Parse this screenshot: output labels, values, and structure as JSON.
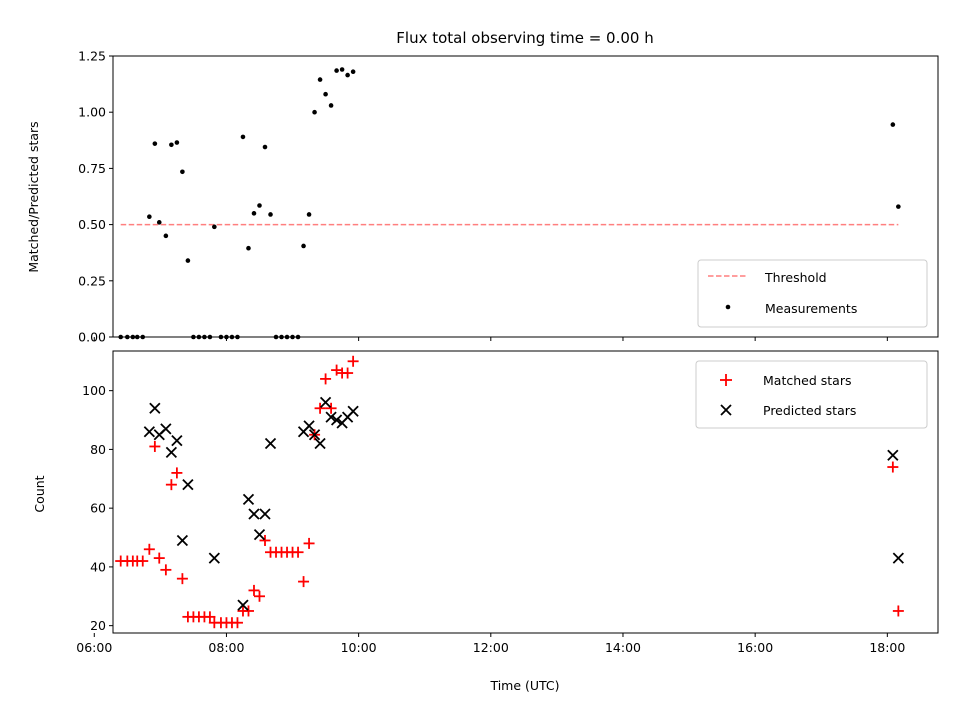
{
  "chart_data": [
    {
      "type": "scatter",
      "title": "Flux total observing time = 0.00 h",
      "xlabel": "",
      "ylabel": "Matched/Predicted stars",
      "xlim": [
        "06:17",
        "18:46"
      ],
      "ylim": [
        0.0,
        1.25
      ],
      "yticks": [
        0.0,
        0.25,
        0.5,
        0.75,
        1.0,
        1.25
      ],
      "ytick_labels": [
        "0.00",
        "0.25",
        "0.50",
        "0.75",
        "1.00",
        "1.25"
      ],
      "xticks": [
        "06:00",
        "08:00",
        "10:00",
        "12:00",
        "14:00",
        "16:00",
        "18:00"
      ],
      "grid": false,
      "legend": {
        "placement": "bottom-right",
        "entries": [
          "Threshold",
          "Measurements"
        ]
      },
      "series": [
        {
          "name": "Threshold",
          "style": "dashed-line",
          "color": "#ff7f7f",
          "points": [
            [
              "06:24",
              0.5
            ],
            [
              "18:10",
              0.5
            ]
          ]
        },
        {
          "name": "Measurements",
          "style": "dot",
          "color": "#000000",
          "points": [
            [
              "06:24",
              0.0
            ],
            [
              "06:30",
              0.0
            ],
            [
              "06:35",
              0.0
            ],
            [
              "06:39",
              0.0
            ],
            [
              "06:44",
              0.0
            ],
            [
              "06:50",
              0.535
            ],
            [
              "06:55",
              0.86
            ],
            [
              "06:59",
              0.51
            ],
            [
              "07:05",
              0.45
            ],
            [
              "07:10",
              0.855
            ],
            [
              "07:15",
              0.865
            ],
            [
              "07:20",
              0.735
            ],
            [
              "07:25",
              0.34
            ],
            [
              "07:30",
              0.0
            ],
            [
              "07:35",
              0.0
            ],
            [
              "07:40",
              0.0
            ],
            [
              "07:45",
              0.0
            ],
            [
              "07:49",
              0.49
            ],
            [
              "07:55",
              0.0
            ],
            [
              "08:00",
              0.0
            ],
            [
              "08:05",
              0.0
            ],
            [
              "08:10",
              0.0
            ],
            [
              "08:15",
              0.89
            ],
            [
              "08:20",
              0.395
            ],
            [
              "08:25",
              0.55
            ],
            [
              "08:30",
              0.585
            ],
            [
              "08:35",
              0.845
            ],
            [
              "08:40",
              0.545
            ],
            [
              "08:45",
              0.0
            ],
            [
              "08:50",
              0.0
            ],
            [
              "08:55",
              0.0
            ],
            [
              "09:00",
              0.0
            ],
            [
              "09:05",
              0.0
            ],
            [
              "09:10",
              0.405
            ],
            [
              "09:15",
              0.545
            ],
            [
              "09:20",
              1.0
            ],
            [
              "09:25",
              1.145
            ],
            [
              "09:30",
              1.08
            ],
            [
              "09:35",
              1.03
            ],
            [
              "09:40",
              1.185
            ],
            [
              "09:45",
              1.19
            ],
            [
              "09:50",
              1.165
            ],
            [
              "09:55",
              1.18
            ],
            [
              "18:05",
              0.945
            ],
            [
              "18:10",
              0.58
            ]
          ]
        }
      ]
    },
    {
      "type": "scatter",
      "title": "",
      "xlabel": "Time (UTC)",
      "ylabel": "Count",
      "xlim": [
        "06:17",
        "18:46"
      ],
      "ylim": [
        17.5,
        113.5
      ],
      "yticks": [
        20,
        40,
        60,
        80,
        100
      ],
      "ytick_labels": [
        "20",
        "40",
        "60",
        "80",
        "100"
      ],
      "xticks": [
        "06:00",
        "08:00",
        "10:00",
        "12:00",
        "14:00",
        "16:00",
        "18:00"
      ],
      "xtick_labels": [
        "06:00",
        "08:00",
        "10:00",
        "12:00",
        "14:00",
        "16:00",
        "18:00"
      ],
      "grid": false,
      "legend": {
        "placement": "top-right",
        "entries": [
          "Matched stars",
          "Predicted stars"
        ]
      },
      "series": [
        {
          "name": "Matched stars",
          "style": "plus",
          "color": "#ff0000",
          "points": [
            [
              "06:24",
              42
            ],
            [
              "06:30",
              42
            ],
            [
              "06:35",
              42
            ],
            [
              "06:39",
              42
            ],
            [
              "06:44",
              42
            ],
            [
              "06:50",
              46
            ],
            [
              "06:55",
              81
            ],
            [
              "06:59",
              43
            ],
            [
              "07:05",
              39
            ],
            [
              "07:10",
              68
            ],
            [
              "07:15",
              72
            ],
            [
              "07:20",
              36
            ],
            [
              "07:25",
              23
            ],
            [
              "07:30",
              23
            ],
            [
              "07:35",
              23
            ],
            [
              "07:40",
              23
            ],
            [
              "07:45",
              23
            ],
            [
              "07:49",
              21
            ],
            [
              "07:55",
              21
            ],
            [
              "08:00",
              21
            ],
            [
              "08:05",
              21
            ],
            [
              "08:10",
              21
            ],
            [
              "08:15",
              25
            ],
            [
              "08:20",
              25
            ],
            [
              "08:25",
              32
            ],
            [
              "08:30",
              30
            ],
            [
              "08:35",
              49
            ],
            [
              "08:40",
              45
            ],
            [
              "08:45",
              45
            ],
            [
              "08:50",
              45
            ],
            [
              "08:55",
              45
            ],
            [
              "09:00",
              45
            ],
            [
              "09:05",
              45
            ],
            [
              "09:10",
              35
            ],
            [
              "09:15",
              48
            ],
            [
              "09:20",
              85
            ],
            [
              "09:25",
              94
            ],
            [
              "09:30",
              104
            ],
            [
              "09:35",
              94
            ],
            [
              "09:40",
              107
            ],
            [
              "09:45",
              106
            ],
            [
              "09:50",
              106
            ],
            [
              "09:55",
              110
            ],
            [
              "18:05",
              74
            ],
            [
              "18:10",
              25
            ]
          ]
        },
        {
          "name": "Predicted stars",
          "style": "x",
          "color": "#000000",
          "points": [
            [
              "06:50",
              86
            ],
            [
              "06:55",
              94
            ],
            [
              "06:59",
              85
            ],
            [
              "07:05",
              87
            ],
            [
              "07:10",
              79
            ],
            [
              "07:15",
              83
            ],
            [
              "07:20",
              49
            ],
            [
              "07:25",
              68
            ],
            [
              "07:49",
              43
            ],
            [
              "08:15",
              27
            ],
            [
              "08:20",
              63
            ],
            [
              "08:25",
              58
            ],
            [
              "08:30",
              51
            ],
            [
              "08:35",
              58
            ],
            [
              "08:40",
              82
            ],
            [
              "09:10",
              86
            ],
            [
              "09:15",
              88
            ],
            [
              "09:20",
              85
            ],
            [
              "09:25",
              82
            ],
            [
              "09:30",
              96
            ],
            [
              "09:35",
              91
            ],
            [
              "09:40",
              90
            ],
            [
              "09:45",
              89
            ],
            [
              "09:50",
              91
            ],
            [
              "09:55",
              93
            ],
            [
              "18:05",
              78
            ],
            [
              "18:10",
              43
            ]
          ]
        }
      ]
    }
  ]
}
